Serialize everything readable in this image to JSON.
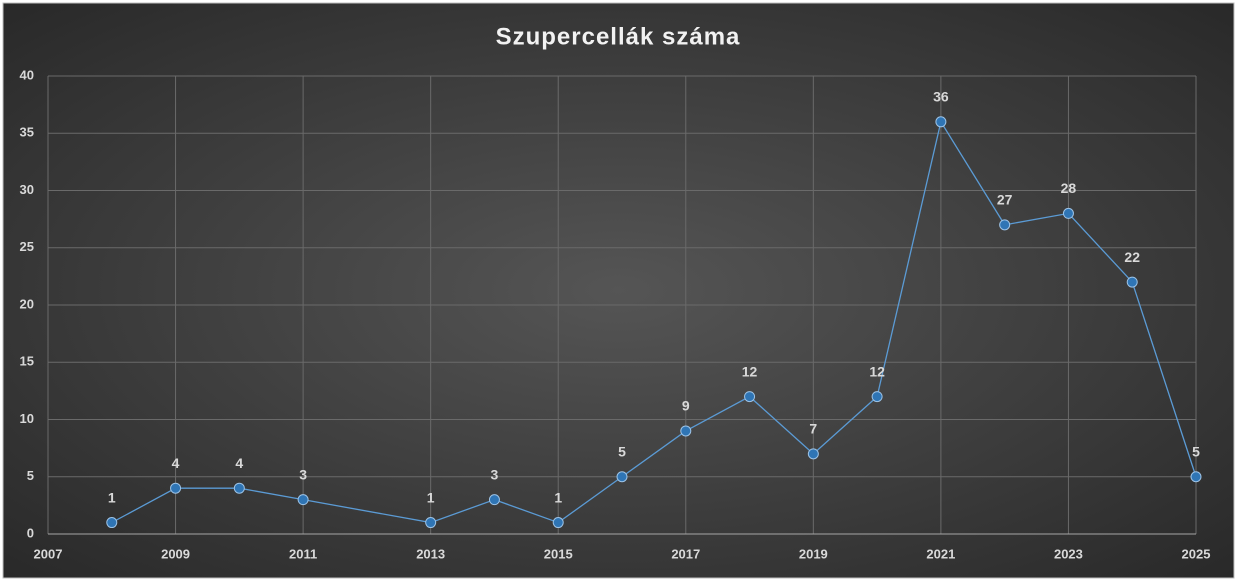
{
  "chart_data": {
    "type": "line",
    "title": "Szupercellák száma",
    "x": [
      2008,
      2009,
      2010,
      2011,
      2013,
      2014,
      2015,
      2016,
      2017,
      2018,
      2019,
      2020,
      2021,
      2022,
      2023,
      2024,
      2025
    ],
    "series": [
      {
        "name": "Szupercellák száma",
        "color": "#5b9bd5",
        "values": [
          1,
          4,
          4,
          3,
          1,
          3,
          1,
          5,
          9,
          12,
          7,
          12,
          36,
          27,
          28,
          22,
          5
        ]
      }
    ],
    "xlim": [
      2007,
      2025
    ],
    "xticks": [
      2007,
      2009,
      2011,
      2013,
      2015,
      2017,
      2019,
      2021,
      2023,
      2025
    ],
    "ylim": [
      0,
      40
    ],
    "yticks": [
      0,
      5,
      10,
      15,
      20,
      25,
      30,
      35,
      40
    ],
    "grid": true
  }
}
